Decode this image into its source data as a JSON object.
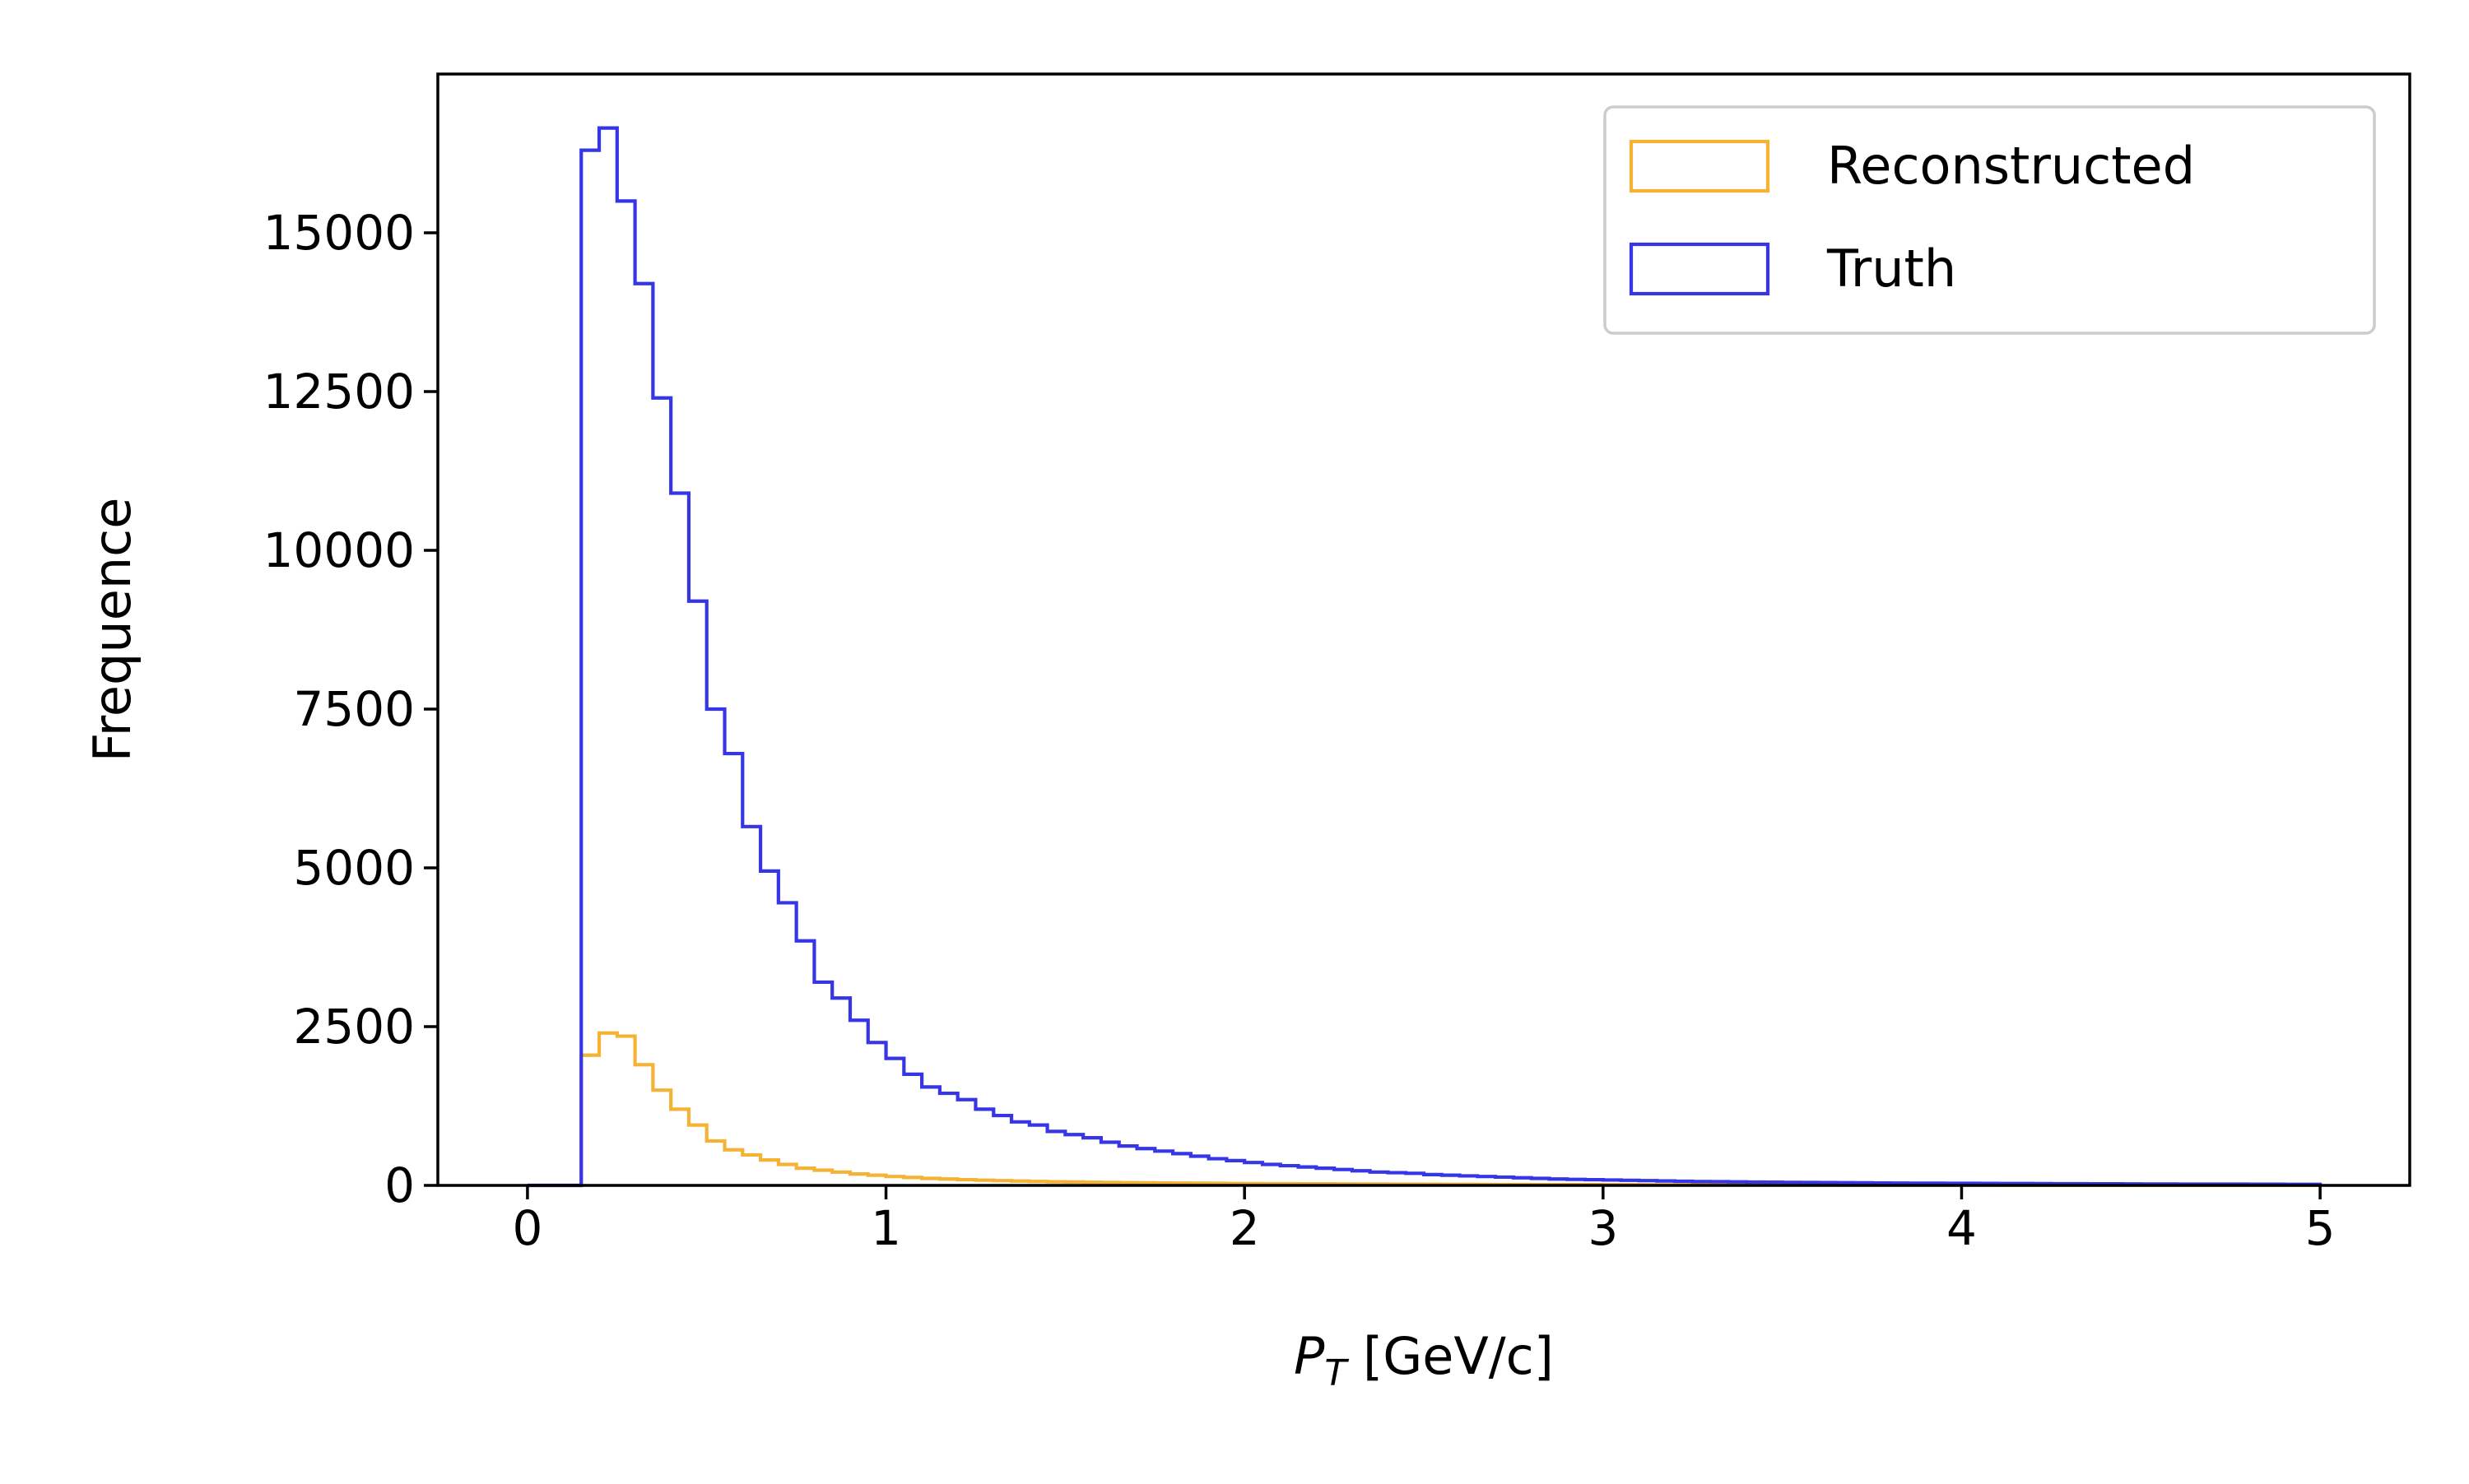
{
  "chart_data": {
    "type": "histogram-step",
    "title": "",
    "xlabel_main": "P",
    "xlabel_sub": "T",
    "xlabel_unit": " [GeV/c]",
    "ylabel": "Frequence",
    "xlim": [
      -0.25,
      5.25
    ],
    "ylim": [
      0,
      17500
    ],
    "x_ticks": [
      0,
      1,
      2,
      3,
      4,
      5
    ],
    "y_ticks": [
      0,
      2500,
      5000,
      7500,
      10000,
      12500,
      15000
    ],
    "grid": false,
    "legend_position": "top-right",
    "bin_width": 0.05,
    "series": [
      {
        "name": "Reconstructed",
        "color": "#f5b335",
        "x_start": 0.0,
        "values": [
          0,
          0,
          0,
          2050,
          2400,
          2350,
          1900,
          1500,
          1200,
          950,
          700,
          560,
          480,
          400,
          330,
          270,
          240,
          210,
          180,
          160,
          140,
          125,
          110,
          100,
          90,
          82,
          75,
          68,
          62,
          57,
          53,
          49,
          45,
          42,
          40,
          38,
          36,
          34,
          32,
          30,
          28,
          27,
          26,
          25,
          24,
          23,
          22,
          21,
          20,
          19,
          18,
          17,
          16,
          15,
          14,
          13,
          12,
          12,
          11,
          11,
          10,
          10,
          9,
          9,
          8,
          8,
          8,
          7,
          7,
          7,
          6,
          6,
          6,
          5,
          5,
          5,
          5,
          4,
          4,
          4,
          4,
          4,
          3,
          3,
          3,
          3,
          3,
          3,
          3,
          2,
          2,
          2,
          2,
          2,
          2,
          2,
          2,
          2,
          2,
          2
        ]
      },
      {
        "name": "Truth",
        "color": "#3636e6",
        "x_start": 0.0,
        "values": [
          0,
          0,
          0,
          16300,
          16650,
          15500,
          14200,
          12400,
          10900,
          9200,
          7500,
          6800,
          5650,
          4950,
          4450,
          3850,
          3200,
          2950,
          2600,
          2250,
          2000,
          1750,
          1550,
          1450,
          1350,
          1200,
          1100,
          1000,
          950,
          850,
          800,
          750,
          680,
          620,
          580,
          540,
          500,
          460,
          420,
          390,
          360,
          330,
          310,
          290,
          270,
          250,
          230,
          210,
          200,
          190,
          170,
          160,
          150,
          140,
          130,
          120,
          110,
          100,
          95,
          90,
          85,
          80,
          75,
          70,
          65,
          60,
          58,
          55,
          52,
          50,
          48,
          46,
          44,
          42,
          40,
          38,
          36,
          35,
          34,
          33,
          32,
          31,
          30,
          29,
          28,
          27,
          26,
          25,
          24,
          23,
          22,
          21,
          20,
          20,
          19,
          19,
          18,
          18,
          17,
          17
        ]
      }
    ]
  }
}
